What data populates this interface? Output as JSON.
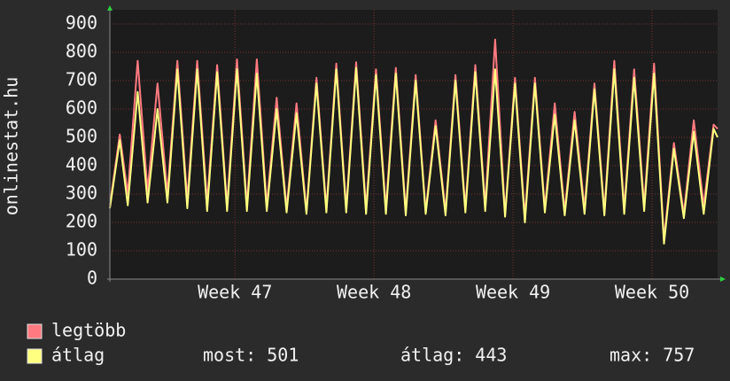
{
  "chart_data": {
    "type": "line",
    "y_label": "onlinestat.hu",
    "x": [
      0,
      0.5,
      0.9,
      1.4,
      1.9,
      2.4,
      2.9,
      3.4,
      3.9,
      4.4,
      4.9,
      5.4,
      5.9,
      6.4,
      6.9,
      7.4,
      7.9,
      8.4,
      8.9,
      9.4,
      9.9,
      10.4,
      10.9,
      11.4,
      11.9,
      12.4,
      12.9,
      13.4,
      13.9,
      14.4,
      14.9,
      15.4,
      15.9,
      16.4,
      16.9,
      17.4,
      17.9,
      18.4,
      18.9,
      19.4,
      19.9,
      20.4,
      20.9,
      21.4,
      21.9,
      22.4,
      22.9,
      23.4,
      23.9,
      24.4,
      24.9,
      25.4,
      25.9,
      26.4,
      26.9,
      27.4,
      27.9,
      28.4,
      28.9,
      29.4,
      29.9,
      30.4,
      30.6
    ],
    "series": [
      {
        "name": "legtöbb",
        "color": "#ff7a80",
        "values": [
          260,
          510,
          300,
          770,
          310,
          690,
          300,
          770,
          280,
          770,
          270,
          755,
          260,
          775,
          260,
          775,
          260,
          640,
          250,
          620,
          240,
          710,
          250,
          760,
          250,
          765,
          250,
          740,
          250,
          745,
          240,
          720,
          240,
          560,
          240,
          720,
          250,
          755,
          260,
          845,
          230,
          710,
          220,
          710,
          250,
          620,
          240,
          590,
          250,
          690,
          240,
          770,
          250,
          740,
          260,
          760,
          140,
          480,
          230,
          560,
          260,
          545,
          530
        ]
      },
      {
        "name": "átlag",
        "color": "#ffff80",
        "values": [
          250,
          490,
          260,
          660,
          270,
          600,
          270,
          740,
          250,
          740,
          240,
          730,
          240,
          740,
          240,
          725,
          240,
          600,
          235,
          585,
          230,
          690,
          235,
          740,
          235,
          745,
          230,
          720,
          230,
          725,
          225,
          700,
          230,
          540,
          225,
          700,
          235,
          730,
          240,
          740,
          220,
          690,
          200,
          690,
          235,
          580,
          225,
          560,
          230,
          670,
          225,
          740,
          230,
          710,
          240,
          725,
          125,
          460,
          215,
          520,
          230,
          530,
          500
        ]
      }
    ],
    "xlim": [
      0,
      30.6
    ],
    "xticks": [
      {
        "value": 6.3,
        "label": "Week 47"
      },
      {
        "value": 13.3,
        "label": "Week 48"
      },
      {
        "value": 20.3,
        "label": "Week 49"
      },
      {
        "value": 27.3,
        "label": "Week 50"
      }
    ],
    "ylim": [
      0,
      950
    ],
    "yticks": [
      0,
      100,
      200,
      300,
      400,
      500,
      600,
      700,
      800,
      900
    ],
    "grid": true,
    "stats": [
      "most: 501",
      "átlag: 443",
      "max: 757"
    ]
  }
}
